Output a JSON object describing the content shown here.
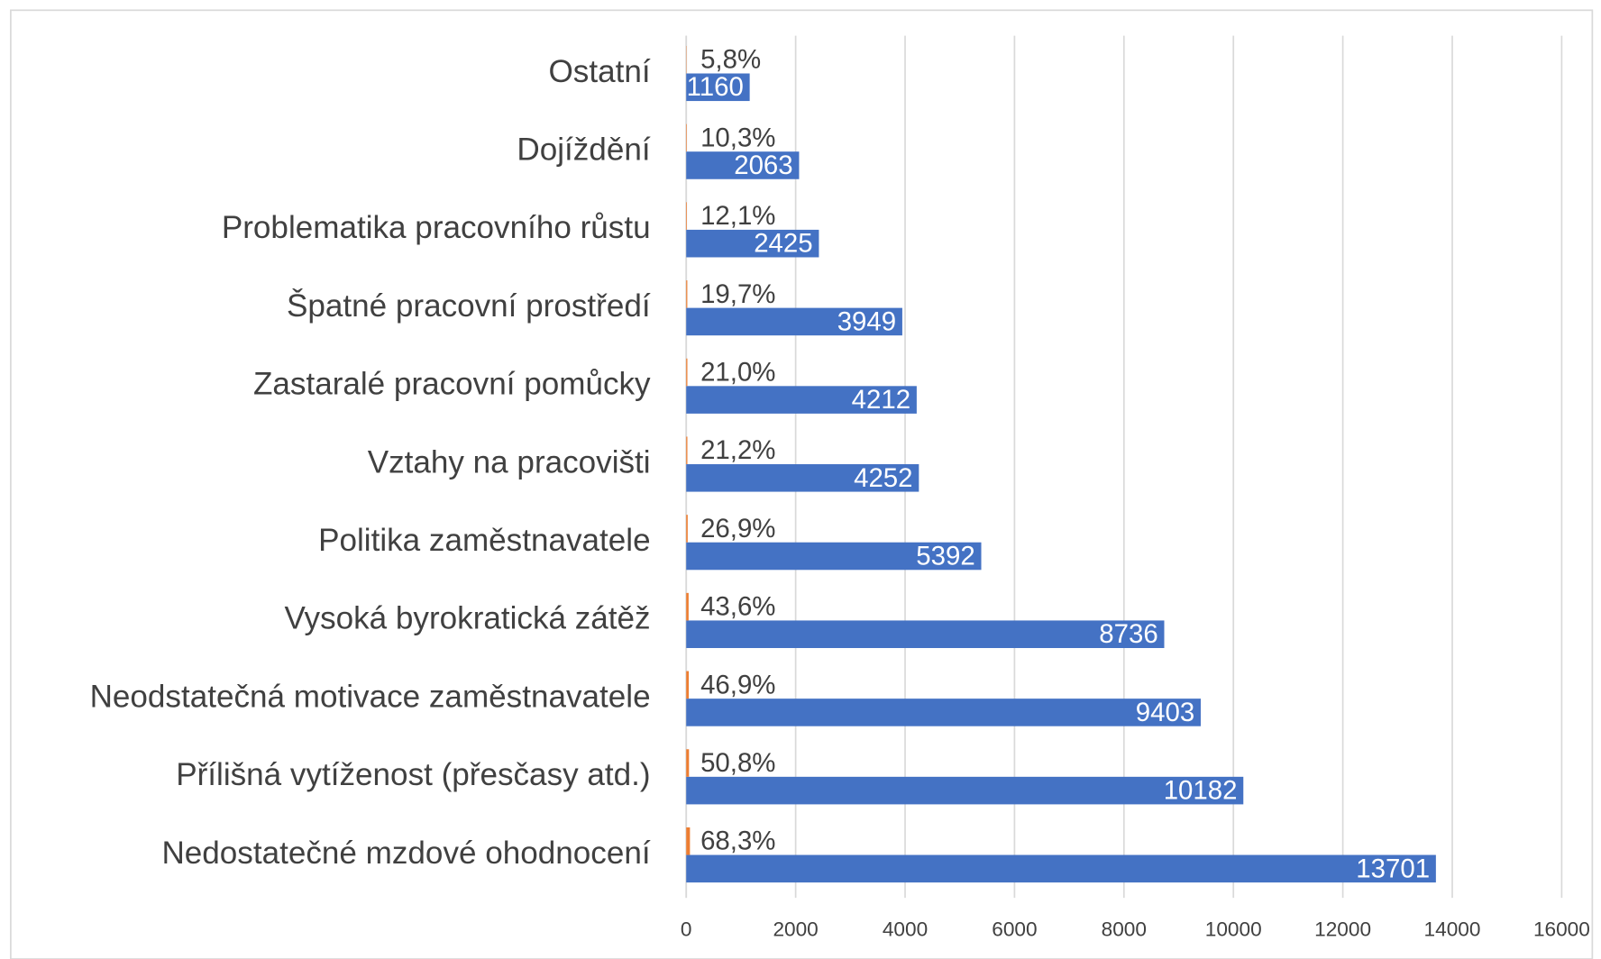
{
  "chart_data": {
    "type": "barh",
    "categories": [
      "Ostatní",
      "Dojíždění",
      "Problematika pracovního růstu",
      "Špatné pracovní prostředí",
      "Zastaralé pracovní pomůcky",
      "Vztahy na pracovišti",
      "Politika zaměstnavatele",
      "Vysoká byrokratická zátěž",
      "Neodstatečná motivace zaměstnavatele",
      "Přílišná vytíženost (přesčasy atd.)",
      "Nedostatečné mzdové ohodnocení"
    ],
    "series": [
      {
        "color": "#4472c4",
        "values": [
          1160,
          2063,
          2425,
          3949,
          4212,
          4252,
          5392,
          8736,
          9403,
          10182,
          13701
        ]
      },
      {
        "color": "#ed7d31",
        "values": [
          5.8,
          10.3,
          12.1,
          19.7,
          21.0,
          21.2,
          26.9,
          43.6,
          46.9,
          50.8,
          68.3
        ],
        "value_labels": [
          "5,8%",
          "10,3%",
          "12,1%",
          "19,7%",
          "21,0%",
          "21,2%",
          "26,9%",
          "43,6%",
          "46,9%",
          "50,8%",
          "68,3%"
        ]
      }
    ],
    "xlim": [
      0,
      16000
    ],
    "xticks": [
      0,
      2000,
      4000,
      6000,
      8000,
      10000,
      12000,
      14000,
      16000
    ],
    "grid": true
  }
}
